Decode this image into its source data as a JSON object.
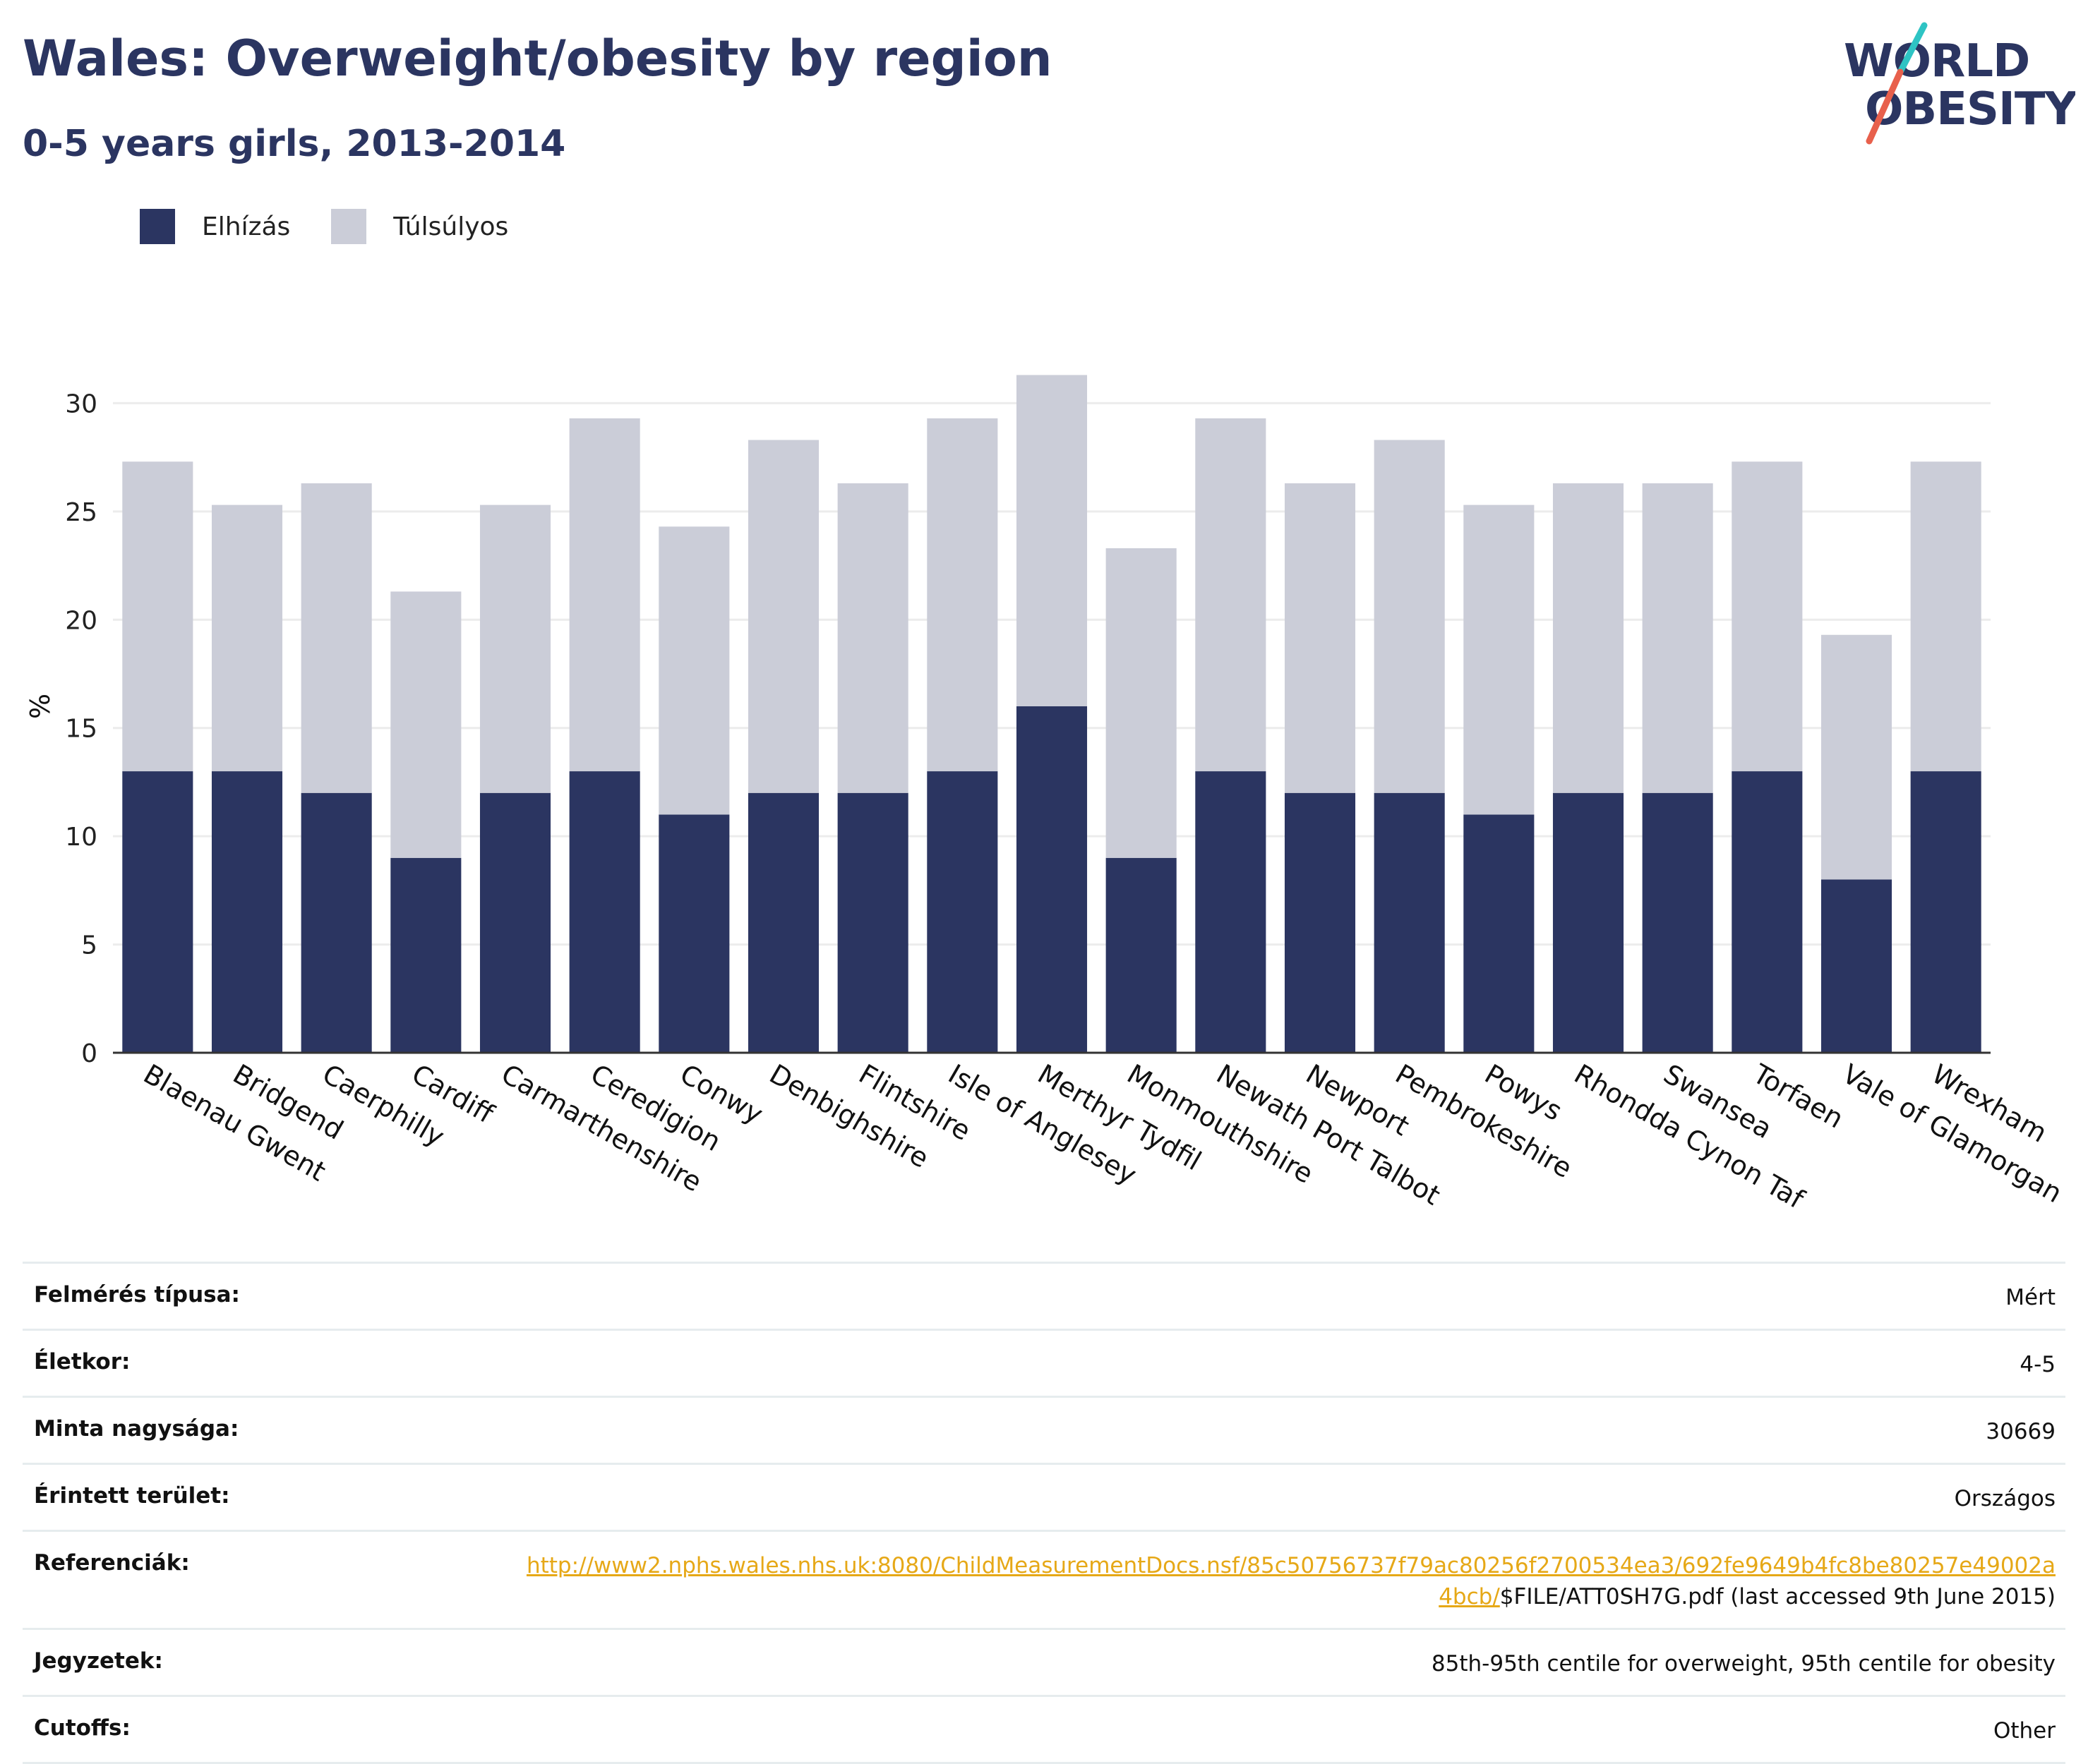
{
  "header": {
    "title": "Wales: Overweight/obesity by region",
    "subtitle": "0-5 years girls, 2013-2014"
  },
  "logo": {
    "line1": "WORLD",
    "line2": "OBESITY",
    "text_color": "#2b3561",
    "slash_colors": [
      "#2ec4c4",
      "#e8604c"
    ]
  },
  "legend": [
    {
      "label": "Elhízás",
      "color": "#2b3561"
    },
    {
      "label": "Túlsúlyos",
      "color": "#cbcdd8"
    }
  ],
  "chart_data": {
    "type": "bar",
    "stacked": true,
    "ylabel": "%",
    "ylim": [
      0,
      32
    ],
    "yticks": [
      0,
      5,
      10,
      15,
      20,
      25,
      30
    ],
    "grid": true,
    "legend_position": "top-left",
    "categories": [
      "Blaenau Gwent",
      "Bridgend",
      "Caerphilly",
      "Cardiff",
      "Carmarthenshire",
      "Ceredigion",
      "Conwy",
      "Denbighshire",
      "Flintshire",
      "Isle of Anglesey",
      "Merthyr Tydfil",
      "Monmouthshire",
      "Newath Port Talbot",
      "Newport",
      "Pembrokeshire",
      "Powys",
      "Rhondda Cynon Taf",
      "Swansea",
      "Torfaen",
      "Vale of Glamorgan",
      "Wrexham"
    ],
    "series": [
      {
        "name": "Elhízás",
        "color": "#2b3561",
        "values": [
          13,
          13,
          12,
          9,
          12,
          13,
          11,
          12,
          12,
          13,
          16,
          9,
          13,
          12,
          12,
          11,
          12,
          12,
          13,
          8,
          13
        ]
      },
      {
        "name": "Túlsúlyos",
        "color": "#cbcdd8",
        "values": [
          14.3,
          12.3,
          14.3,
          12.3,
          13.3,
          16.3,
          13.3,
          16.3,
          14.3,
          16.3,
          15.3,
          14.3,
          16.3,
          14.3,
          16.3,
          14.3,
          14.3,
          14.3,
          14.3,
          11.3,
          14.3
        ]
      }
    ]
  },
  "info": {
    "rows": [
      {
        "label": "Felmérés típusa:",
        "value": "Mért"
      },
      {
        "label": "Életkor:",
        "value": "4-5"
      },
      {
        "label": "Minta nagysága:",
        "value": "30669"
      },
      {
        "label": "Érintett terület:",
        "value": "Országos"
      },
      {
        "label": "Referenciák:",
        "link": "http://www2.nphs.wales.nhs.uk:8080/ChildMeasurementDocs.nsf/85c50756737f79ac80256f2700534ea3/692fe9649b4fc8be80257e49002a4bcb/",
        "value": "$FILE/ATT0SH7G.pdf (last accessed 9th June 2015)"
      },
      {
        "label": "Jegyzetek:",
        "value": "85th-95th centile for overweight, 95th centile for obesity"
      },
      {
        "label": "Cutoffs:",
        "value": "Other"
      }
    ]
  }
}
